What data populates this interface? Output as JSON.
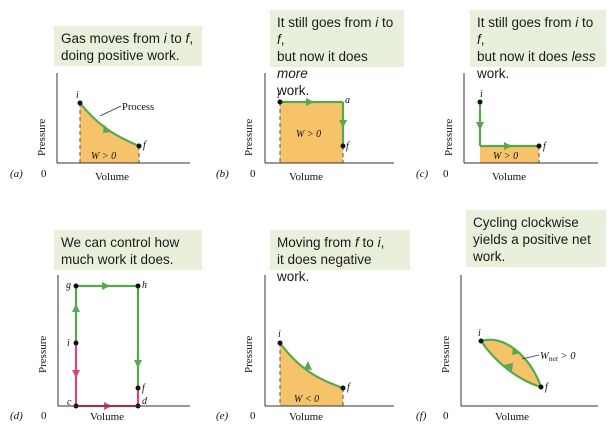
{
  "colors": {
    "fill": "#f6c36b",
    "green": "#55a84d",
    "pink": "#d44a76",
    "note_bg": "#e8efda"
  },
  "panels": [
    {
      "tag": "(a)",
      "note_lines": [
        "Gas moves from i to f,",
        "doing positive work."
      ],
      "ylabel": "Pressure",
      "xlabel": "Volume",
      "origin": "0",
      "point_i": "i",
      "point_f": "f",
      "work": "W > 0",
      "process_label": "Process"
    },
    {
      "tag": "(b)",
      "note_lines": [
        "It still goes from i to f,",
        "but now it does more",
        "work."
      ],
      "ylabel": "Pressure",
      "xlabel": "Volume",
      "origin": "0",
      "point_i": "i",
      "point_a": "a",
      "point_f": "f",
      "work": "W > 0"
    },
    {
      "tag": "(c)",
      "note_lines": [
        "It still goes from i to f,",
        "but now it does less",
        "work."
      ],
      "ylabel": "Pressure",
      "xlabel": "Volume",
      "origin": "0",
      "point_i": "i",
      "point_f": "f",
      "work": "W > 0"
    },
    {
      "tag": "(d)",
      "note_lines": [
        "We can control how",
        "much work it does."
      ],
      "ylabel": "Pressure",
      "xlabel": "Volume",
      "origin": "0",
      "point_g": "g",
      "point_h": "h",
      "point_i": "i",
      "point_f": "f",
      "point_c": "c",
      "point_d": "d"
    },
    {
      "tag": "(e)",
      "note_lines": [
        "Moving from f to i,",
        "it does negative work."
      ],
      "ylabel": "Pressure",
      "xlabel": "Volume",
      "origin": "0",
      "point_i": "i",
      "point_f": "f",
      "work": "W < 0"
    },
    {
      "tag": "(f)",
      "note_lines": [
        "Cycling clockwise",
        "yields a positive net",
        "work."
      ],
      "ylabel": "Pressure",
      "xlabel": "Volume",
      "origin": "0",
      "point_i": "i",
      "point_f": "f",
      "work_w": "W",
      "work_sub": "net",
      "work_rel": " > 0"
    }
  ]
}
